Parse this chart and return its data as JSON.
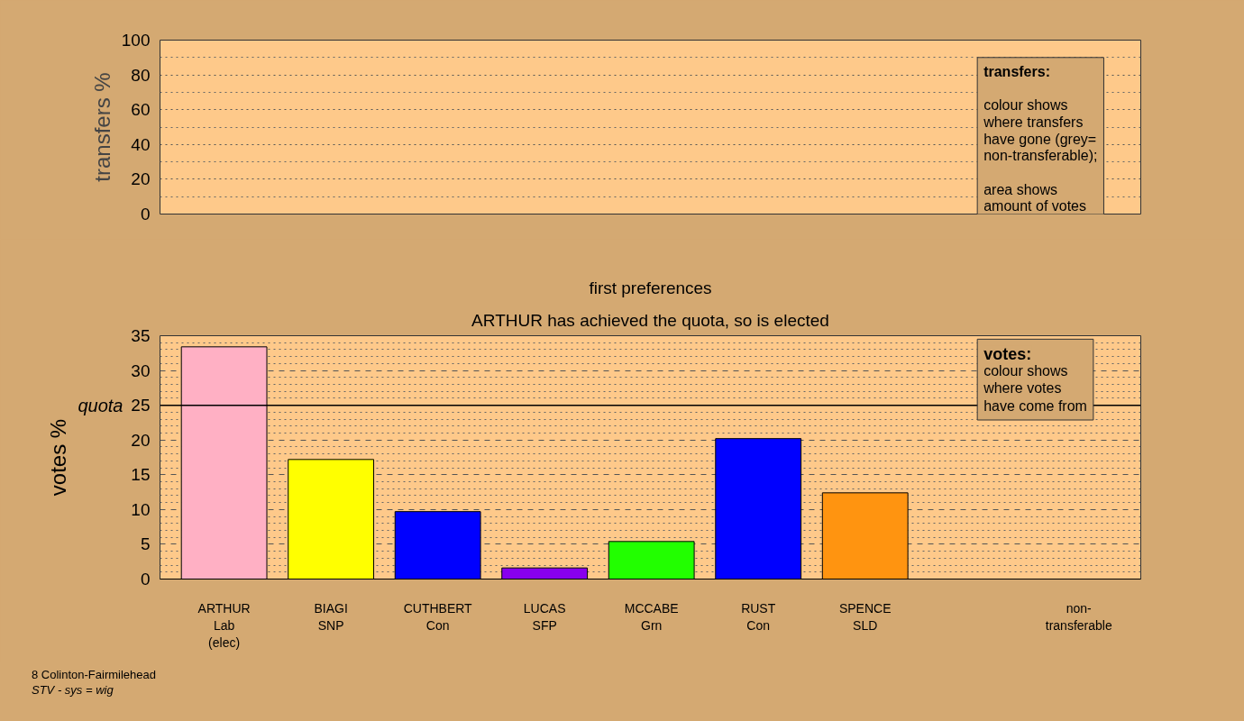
{
  "chart_data": [
    {
      "type": "bar",
      "ylabel": "transfers %",
      "categories": [
        null,
        null,
        null,
        null,
        null,
        null,
        null,
        null,
        null
      ],
      "values": [
        null,
        null,
        null,
        null,
        null,
        null,
        null,
        null,
        null
      ],
      "ylim": [
        0,
        100
      ],
      "yticks": [
        0,
        20,
        40,
        60,
        80,
        100
      ],
      "grid": "y",
      "tick_labels": "y",
      "annotations": [
        "transfers:",
        "colour shows\nwhere transfers\nhave gone (grey=\nnon-transferable);",
        "area shows\namount of votes"
      ]
    },
    {
      "type": "bar",
      "title": "first preferences",
      "subtitle": "ARTHUR has achieved the quota, so is elected",
      "ylabel": "votes %",
      "categories": [
        "ARTHUR\nLab\n(elec)",
        "BIAGI\nSNP",
        "CUTHBERT\nCon",
        "LUCAS\nSFP",
        "MCCABE\nGrn",
        "RUST\nCon",
        "SPENCE\nSLD",
        null,
        "non-\ntransferable"
      ],
      "values": [
        33.4,
        17.2,
        9.7,
        1.6,
        5.4,
        20.2,
        12.4,
        null,
        0
      ],
      "colors": [
        "#ffb0c4",
        "#ffff00",
        "#0000ff",
        "#8800ee",
        "#22ff00",
        "#0000ff",
        "#ff9410",
        "#888888",
        "#888888"
      ],
      "ylim": [
        0,
        35
      ],
      "yticks": [
        0,
        5,
        10,
        15,
        20,
        25,
        30,
        35
      ],
      "grid": "y",
      "ref_lines": [
        {
          "axis": "y",
          "value": 25,
          "label": "quota"
        }
      ],
      "annotations": [
        "votes:",
        "colour shows\nwhere votes\nhave come from",
        "8 Colinton-Fairmilehead",
        "STV - sys = wig"
      ]
    }
  ]
}
